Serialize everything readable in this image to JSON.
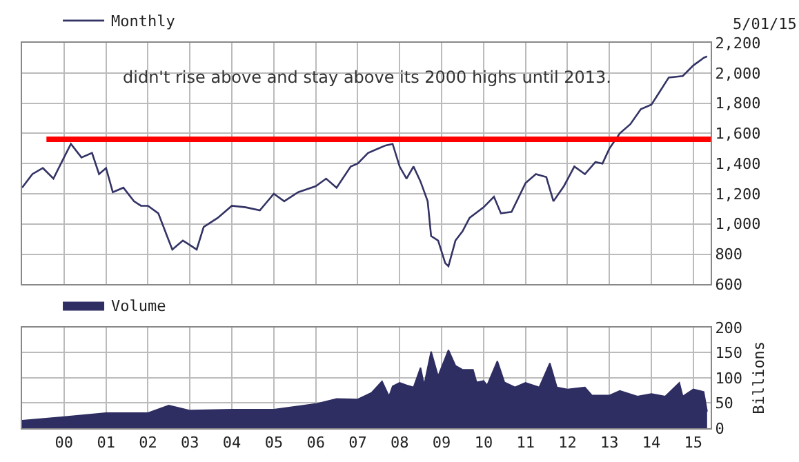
{
  "chart_data": [
    {
      "type": "line",
      "legend": "top left",
      "grid": true,
      "tick_labels": "y",
      "marker": "none",
      "line_style": "solid",
      "annotations": [
        "didn't rise above and stay above its 2000 highs until 2013.",
        "5/01/15"
      ],
      "xlim": [
        "1999-01",
        "2015-06"
      ],
      "xticks": [
        {
          "value": "2000-01",
          "label": null
        },
        {
          "value": "2001-01",
          "label": null
        },
        {
          "value": "2002-01",
          "label": null
        },
        {
          "value": "2003-01",
          "label": null
        },
        {
          "value": "2004-01",
          "label": null
        },
        {
          "value": "2005-01",
          "label": null
        },
        {
          "value": "2006-01",
          "label": null
        },
        {
          "value": "2007-01",
          "label": null
        },
        {
          "value": "2008-01",
          "label": null
        },
        {
          "value": "2009-01",
          "label": null
        },
        {
          "value": "2010-01",
          "label": null
        },
        {
          "value": "2011-01",
          "label": null
        },
        {
          "value": "2012-01",
          "label": null
        },
        {
          "value": "2013-01",
          "label": null
        },
        {
          "value": "2014-01",
          "label": null
        },
        {
          "value": "2015-01",
          "label": null
        }
      ],
      "ylim": [
        600,
        2200
      ],
      "yticks": [
        {
          "value": 600,
          "label": "600"
        },
        {
          "value": 800,
          "label": "800"
        },
        {
          "value": 1000,
          "label": "1,000"
        },
        {
          "value": 1200,
          "label": "1,200"
        },
        {
          "value": 1400,
          "label": "1,400"
        },
        {
          "value": 1600,
          "label": "1,600"
        },
        {
          "value": 1800,
          "label": "1,800"
        },
        {
          "value": 2000,
          "label": "2,000"
        },
        {
          "value": 2200,
          "label": "2,200"
        }
      ],
      "series": [
        {
          "name": "Monthly",
          "color": "#333366",
          "x": [
            "1999-01",
            "1999-04",
            "1999-07",
            "1999-10",
            "2000-01",
            "2000-03",
            "2000-06",
            "2000-09",
            "2000-11",
            "2001-01",
            "2001-03",
            "2001-06",
            "2001-09",
            "2001-11",
            "2002-01",
            "2002-04",
            "2002-07",
            "2002-08",
            "2002-11",
            "2003-01",
            "2003-03",
            "2003-05",
            "2003-09",
            "2004-01",
            "2004-05",
            "2004-09",
            "2005-01",
            "2005-04",
            "2005-08",
            "2006-01",
            "2006-04",
            "2006-07",
            "2006-11",
            "2007-01",
            "2007-04",
            "2007-07",
            "2007-09",
            "2007-11",
            "2008-01",
            "2008-03",
            "2008-05",
            "2008-07",
            "2008-09",
            "2008-10",
            "2008-12",
            "2009-02",
            "2009-03",
            "2009-05",
            "2009-07",
            "2009-09",
            "2010-01",
            "2010-04",
            "2010-06",
            "2010-09",
            "2011-01",
            "2011-04",
            "2011-07",
            "2011-09",
            "2011-12",
            "2012-03",
            "2012-06",
            "2012-09",
            "2012-11",
            "2013-01",
            "2013-04",
            "2013-07",
            "2013-10",
            "2014-01",
            "2014-03",
            "2014-06",
            "2014-10",
            "2015-01",
            "2015-04",
            "2015-05"
          ],
          "values": [
            1240,
            1330,
            1370,
            1300,
            1440,
            1530,
            1440,
            1470,
            1330,
            1370,
            1210,
            1240,
            1150,
            1120,
            1120,
            1070,
            890,
            830,
            890,
            860,
            830,
            980,
            1040,
            1120,
            1110,
            1090,
            1200,
            1150,
            1210,
            1250,
            1300,
            1240,
            1380,
            1400,
            1470,
            1500,
            1520,
            1530,
            1380,
            1300,
            1380,
            1280,
            1150,
            920,
            890,
            740,
            720,
            890,
            950,
            1040,
            1110,
            1180,
            1070,
            1080,
            1270,
            1330,
            1310,
            1150,
            1250,
            1380,
            1330,
            1410,
            1400,
            1500,
            1600,
            1660,
            1760,
            1790,
            1860,
            1970,
            1980,
            2050,
            2100,
            2110
          ]
        },
        {
          "type": "line",
          "color": "#ff0000",
          "x": [
            "1999-08",
            "2015-06"
          ],
          "values": [
            1560,
            1560
          ]
        }
      ]
    },
    {
      "type": "area",
      "legend": "top left",
      "grid": true,
      "ylabel": "Billions",
      "xlim": [
        "1999-01",
        "2015-06"
      ],
      "xticks": [
        {
          "value": "2000-01",
          "label": "00"
        },
        {
          "value": "2001-01",
          "label": "01"
        },
        {
          "value": "2002-01",
          "label": "02"
        },
        {
          "value": "2003-01",
          "label": "03"
        },
        {
          "value": "2004-01",
          "label": "04"
        },
        {
          "value": "2005-01",
          "label": "05"
        },
        {
          "value": "2006-01",
          "label": "06"
        },
        {
          "value": "2007-01",
          "label": "07"
        },
        {
          "value": "2008-01",
          "label": "08"
        },
        {
          "value": "2009-01",
          "label": "09"
        },
        {
          "value": "2010-01",
          "label": "10"
        },
        {
          "value": "2011-01",
          "label": "11"
        },
        {
          "value": "2012-01",
          "label": "12"
        },
        {
          "value": "2013-01",
          "label": "13"
        },
        {
          "value": "2014-01",
          "label": "14"
        },
        {
          "value": "2015-01",
          "label": "15"
        }
      ],
      "ylim": [
        0,
        200
      ],
      "yticks": [
        0,
        50,
        100,
        150,
        200
      ],
      "series": [
        {
          "name": "Volume",
          "color": "#2e2e63",
          "x": [
            "1999-01",
            "2000-01",
            "2001-01",
            "2002-01",
            "2002-07",
            "2003-01",
            "2004-01",
            "2005-01",
            "2006-01",
            "2006-07",
            "2007-01",
            "2007-05",
            "2007-08",
            "2007-10",
            "2007-11",
            "2008-01",
            "2008-03",
            "2008-05",
            "2008-07",
            "2008-08",
            "2008-10",
            "2008-12",
            "2009-03",
            "2009-05",
            "2009-07",
            "2009-10",
            "2009-11",
            "2010-01",
            "2010-02",
            "2010-05",
            "2010-07",
            "2010-10",
            "2011-01",
            "2011-05",
            "2011-08",
            "2011-10",
            "2012-01",
            "2012-06",
            "2012-08",
            "2013-01",
            "2013-04",
            "2013-09",
            "2014-01",
            "2014-05",
            "2014-09",
            "2014-10",
            "2015-01",
            "2015-04",
            "2015-05"
          ],
          "values": [
            15,
            22,
            30,
            30,
            45,
            35,
            37,
            37,
            48,
            58,
            57,
            70,
            93,
            63,
            83,
            90,
            85,
            81,
            120,
            85,
            152,
            103,
            155,
            124,
            116,
            116,
            91,
            94,
            85,
            133,
            91,
            81,
            90,
            81,
            129,
            81,
            77,
            81,
            65,
            65,
            74,
            63,
            68,
            63,
            90,
            63,
            77,
            72,
            33
          ]
        }
      ]
    }
  ]
}
